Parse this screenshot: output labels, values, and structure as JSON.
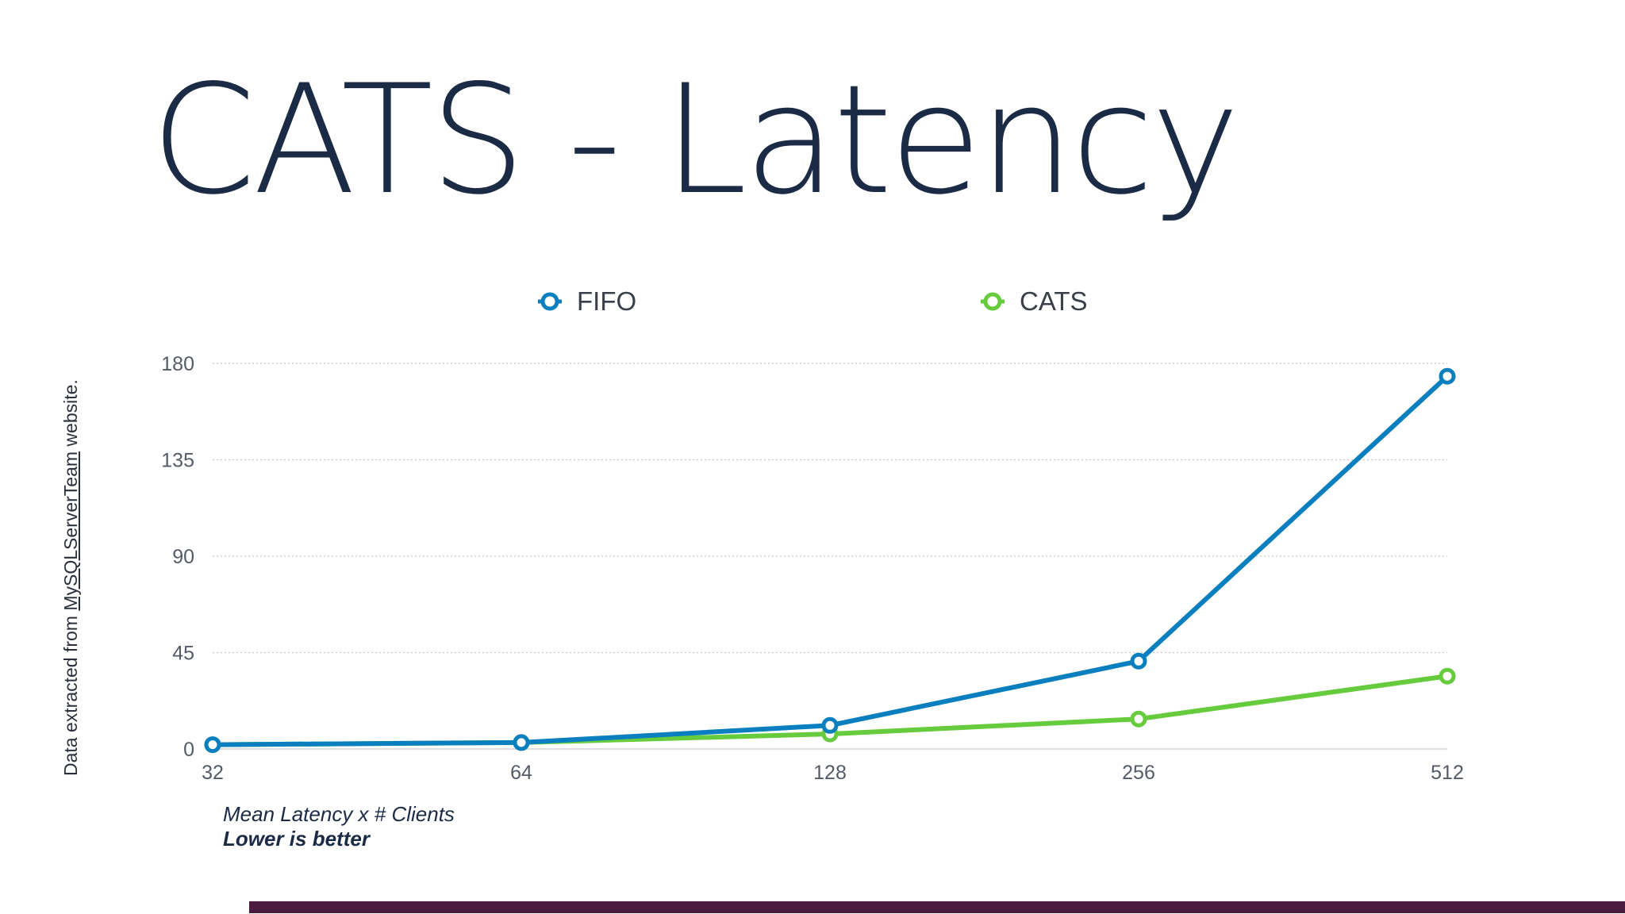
{
  "slide": {
    "title": "CATS - Latency",
    "source_note_prefix": "Data extracted from ",
    "source_note_link": "MySQLServerTeam",
    "source_note_suffix": " website.",
    "caption_line1": "Mean Latency x # Clients",
    "caption_line2": "Lower is better",
    "footer_color": "#4b1a3f"
  },
  "chart_data": {
    "type": "line",
    "title": "",
    "xlabel": "",
    "ylabel": "",
    "categories": [
      "32",
      "64",
      "128",
      "256",
      "512"
    ],
    "ylim": [
      0,
      180
    ],
    "yticks": [
      0,
      45,
      90,
      135,
      180
    ],
    "grid": true,
    "legend_position": "top",
    "series": [
      {
        "name": "FIFO",
        "color": "#0a7fbf",
        "values": [
          2,
          3,
          11,
          41,
          174
        ]
      },
      {
        "name": "CATS",
        "color": "#66cc3d",
        "values": [
          2,
          3,
          7,
          14,
          34
        ]
      }
    ]
  }
}
